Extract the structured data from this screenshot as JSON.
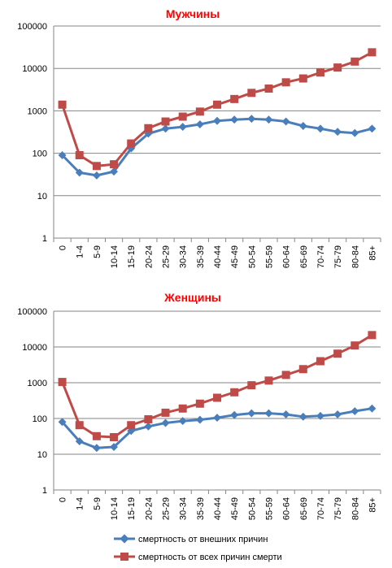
{
  "chart_data": [
    {
      "type": "line",
      "title": "Мужчины",
      "title_color": "#ff0000",
      "yscale": "log",
      "ylim": [
        1,
        100000
      ],
      "y_ticks": [
        "1",
        "10",
        "100",
        "1000",
        "10000",
        "100000"
      ],
      "categories": [
        "0",
        "1-4",
        "5-9",
        "10-14",
        "15-19",
        "20-24",
        "25-29",
        "30-34",
        "35-39",
        "40-44",
        "45-49",
        "50-54",
        "55-59",
        "60-64",
        "65-69",
        "70-74",
        "75-79",
        "80-84",
        "85+"
      ],
      "grid": "horizontal",
      "series": [
        {
          "name": "смертность от внешних причин",
          "color": "#4a7ebb",
          "marker": "diamond",
          "values": [
            90,
            35,
            30,
            37,
            130,
            290,
            380,
            420,
            480,
            580,
            620,
            650,
            620,
            560,
            440,
            380,
            320,
            300,
            380
          ]
        },
        {
          "name": "смертность от всех причин смерти",
          "color": "#be4b48",
          "marker": "square",
          "values": [
            1400,
            90,
            50,
            55,
            170,
            390,
            560,
            730,
            960,
            1400,
            1900,
            2650,
            3350,
            4700,
            5800,
            8000,
            10500,
            14500,
            24000
          ]
        }
      ]
    },
    {
      "type": "line",
      "title": "Женщины",
      "title_color": "#ff0000",
      "yscale": "log",
      "ylim": [
        1,
        100000
      ],
      "y_ticks": [
        "1",
        "10",
        "100",
        "1000",
        "10000",
        "100000"
      ],
      "categories": [
        "0",
        "1-4",
        "5-9",
        "10-14",
        "15-19",
        "20-24",
        "25-29",
        "30-34",
        "35-39",
        "40-44",
        "45-49",
        "50-54",
        "55-59",
        "60-64",
        "65-69",
        "70-74",
        "75-79",
        "80-84",
        "85+"
      ],
      "grid": "horizontal",
      "series": [
        {
          "name": "смертность от внешних причин",
          "color": "#4a7ebb",
          "marker": "diamond",
          "values": [
            80,
            23,
            15,
            16,
            45,
            60,
            75,
            85,
            92,
            105,
            125,
            140,
            140,
            130,
            112,
            118,
            130,
            160,
            190
          ]
        },
        {
          "name": "смертность от всех причин смерти",
          "color": "#be4b48",
          "marker": "square",
          "values": [
            1050,
            65,
            32,
            30,
            65,
            95,
            145,
            190,
            260,
            380,
            540,
            850,
            1150,
            1650,
            2400,
            4000,
            6500,
            11000,
            21500
          ]
        }
      ]
    }
  ],
  "legend": {
    "placement": "bottom",
    "items": [
      {
        "label": "смертность от внешних причин",
        "color": "#4a7ebb",
        "marker": "diamond"
      },
      {
        "label": "смертность от всех причин смерти",
        "color": "#be4b48",
        "marker": "square"
      }
    ]
  }
}
